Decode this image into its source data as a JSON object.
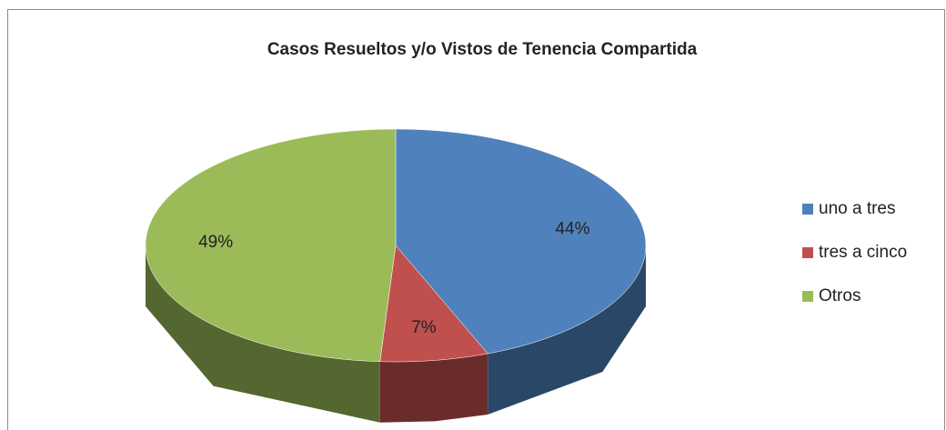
{
  "chart_data": {
    "type": "pie",
    "title": "Casos Resueltos y/o Vistos de Tenencia Compartida",
    "categories": [
      "uno a tres",
      "tres a cinco",
      "Otros"
    ],
    "values": [
      44,
      7,
      49
    ],
    "value_labels": [
      "44%",
      "7%",
      "49%"
    ],
    "colors": [
      "#4f81bd",
      "#c0504d",
      "#9bbb59"
    ],
    "legend": "right"
  }
}
